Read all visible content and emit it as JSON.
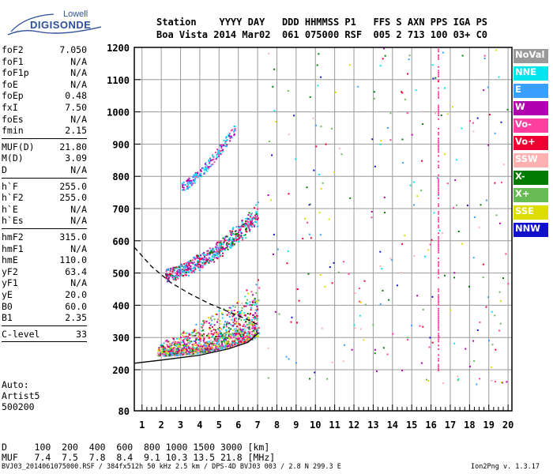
{
  "logo": {
    "top": "Lowell",
    "main": "DIGISONDE"
  },
  "header": {
    "labels": "Station    YYYY DAY   DDD HHMMSS P1   FFS S AXN PPS IGA PS",
    "values": "Boa Vista 2014 Mar02  061 075000 RSF  005 2 713 100 03+ C0"
  },
  "params": [
    {
      "label": "foF2",
      "value": "7.050"
    },
    {
      "label": "foF1",
      "value": "N/A"
    },
    {
      "label": "foF1p",
      "value": "N/A"
    },
    {
      "label": "foE",
      "value": "N/A"
    },
    {
      "label": "foEp",
      "value": "0.48"
    },
    {
      "label": "fxI",
      "value": "7.50"
    },
    {
      "label": "foEs",
      "value": "N/A"
    },
    {
      "label": "fmin",
      "value": "2.15"
    },
    {
      "label": "MUF(D)",
      "value": "21.80"
    },
    {
      "label": "M(D)",
      "value": "3.09"
    },
    {
      "label": "D",
      "value": "N/A"
    },
    {
      "label": "h`F",
      "value": "255.0"
    },
    {
      "label": "h`F2",
      "value": "255.0"
    },
    {
      "label": "h`E",
      "value": "N/A"
    },
    {
      "label": "h`Es",
      "value": "N/A"
    },
    {
      "label": "hmF2",
      "value": "315.0"
    },
    {
      "label": "hmF1",
      "value": "N/A"
    },
    {
      "label": "hmE",
      "value": "110.0"
    },
    {
      "label": "yF2",
      "value": "63.4"
    },
    {
      "label": "yF1",
      "value": "N/A"
    },
    {
      "label": "yE",
      "value": "20.0"
    },
    {
      "label": "B0",
      "value": "60.0"
    },
    {
      "label": "B1",
      "value": "2.35"
    },
    {
      "label": "C-level",
      "value": "33"
    }
  ],
  "auto": {
    "line1": "Auto:",
    "line2": "Artist5",
    "line3": "500200"
  },
  "bottom": {
    "d_row": "D     100  200  400  600  800 1000 1500 3000 [km]",
    "muf_row": "MUF   7.4  7.5  7.8  8.4  9.1 10.3 13.5 21.8 [MHz]"
  },
  "footer": {
    "left": "BVJ03_2014061075000.RSF / 384fx512h 50 kHz 2.5 km / DPS-4D BVJ03 003 / 2.8 N 299.3 E",
    "right": "Ion2Png v. 1.3.17"
  },
  "legend": [
    {
      "label": "NoVal",
      "color": "#999999"
    },
    {
      "label": "NNE",
      "color": "#00e5ee"
    },
    {
      "label": "E",
      "color": "#3aa0ff"
    },
    {
      "label": "W",
      "color": "#b000b0"
    },
    {
      "label": "Vo-",
      "color": "#ff3fa0"
    },
    {
      "label": "Vo+",
      "color": "#ee0033"
    },
    {
      "label": "SSW",
      "color": "#ffb0b0"
    },
    {
      "label": "X-",
      "color": "#007a00"
    },
    {
      "label": "X+",
      "color": "#66bb55"
    },
    {
      "label": "SSE",
      "color": "#dddd00"
    },
    {
      "label": "NNW",
      "color": "#1010cc"
    }
  ],
  "chart_data": {
    "type": "scatter",
    "xlabel": "",
    "ylabel": "",
    "xlim": [
      0.6,
      20.2
    ],
    "ylim": [
      80,
      1200
    ],
    "x_ticks": [
      1,
      2,
      3,
      4,
      5,
      6,
      7,
      8,
      9,
      10,
      11,
      12,
      13,
      14,
      15,
      16,
      17,
      18,
      19,
      20
    ],
    "y_ticks": [
      80,
      200,
      300,
      400,
      500,
      600,
      700,
      800,
      900,
      1000,
      1100,
      1200
    ],
    "grid": true,
    "legend_position": "right",
    "traces": [
      {
        "name": "F2 O-trace",
        "freq_range": [
          1.8,
          7.05
        ],
        "height_range": [
          240,
          400
        ]
      },
      {
        "name": "2nd hop",
        "freq_range": [
          2.2,
          7.0
        ],
        "height_range": [
          490,
          760
        ]
      },
      {
        "name": "3rd hop",
        "freq_range": [
          3.0,
          5.8
        ],
        "height_range": [
          760,
          980
        ]
      }
    ],
    "profile": [
      [
        0.6,
        220
      ],
      [
        2,
        230
      ],
      [
        4,
        245
      ],
      [
        5.5,
        265
      ],
      [
        6.5,
        285
      ],
      [
        7.05,
        315
      ]
    ],
    "mode_curve": [
      [
        0.6,
        580
      ],
      [
        1.5,
        520
      ],
      [
        2.5,
        470
      ],
      [
        3.5,
        435
      ],
      [
        4.5,
        405
      ],
      [
        5.5,
        380
      ],
      [
        6.5,
        355
      ],
      [
        7.0,
        340
      ]
    ],
    "interference_lines_mhz": [
      16.35
    ]
  }
}
